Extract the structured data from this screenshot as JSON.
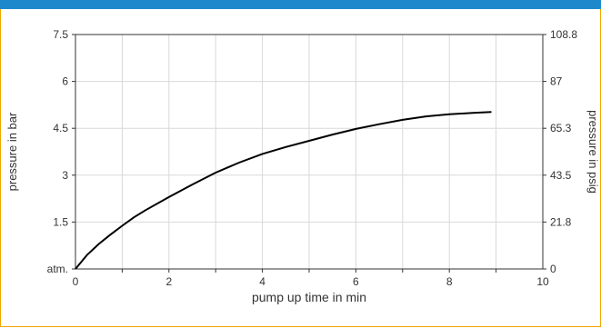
{
  "colors": {
    "top_bar": "#1e88cc",
    "frame_border": "#f0a500",
    "grid": "#d9d9d9",
    "line": "#000000"
  },
  "chart_data": {
    "type": "line",
    "xlabel": "pump up time in min",
    "ylabel_left": "pressure in bar",
    "ylabel_right": "pressure in psig",
    "xlim": [
      0,
      10
    ],
    "ylim": [
      0,
      7.5
    ],
    "x_ticks": [
      "0",
      "2",
      "4",
      "6",
      "8",
      "10"
    ],
    "y_left_ticks": [
      "atm.",
      "1.5",
      "3",
      "4.5",
      "6",
      "7.5"
    ],
    "y_right_ticks": [
      "0",
      "21.8",
      "43.5",
      "65.3",
      "87",
      "108.8"
    ],
    "grid": true,
    "series": [
      {
        "x": [
          0,
          0.25,
          0.5,
          0.75,
          1,
          1.25,
          1.5,
          2,
          2.5,
          3,
          3.5,
          4,
          4.5,
          5,
          5.5,
          6,
          6.5,
          7,
          7.5,
          8,
          8.5,
          8.9
        ],
        "y": [
          0,
          0.45,
          0.8,
          1.1,
          1.38,
          1.65,
          1.88,
          2.3,
          2.7,
          3.08,
          3.4,
          3.68,
          3.9,
          4.1,
          4.3,
          4.48,
          4.63,
          4.77,
          4.88,
          4.95,
          4.99,
          5.02
        ]
      }
    ]
  }
}
